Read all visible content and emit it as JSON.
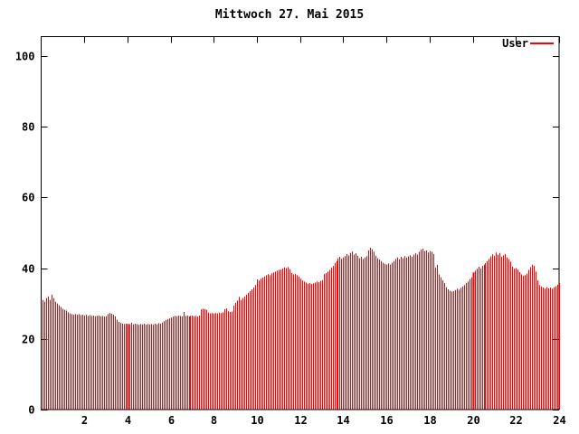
{
  "title": "Mittwoch 27. Mai 2015",
  "legend": {
    "label": "User",
    "color": "#ff0000"
  },
  "colors": {
    "bar": "#ff0000",
    "axis": "#000000",
    "background": "#ffffff",
    "text": "#000000"
  },
  "chart_data": {
    "type": "bar",
    "title": "Mittwoch 27. Mai 2015",
    "xlabel": "",
    "ylabel": "",
    "x_unit": "hour-of-day",
    "sample_interval_minutes": 5,
    "xlim": [
      0,
      24
    ],
    "ylim": [
      0,
      105.5
    ],
    "x_ticks": [
      2,
      4,
      6,
      8,
      10,
      12,
      14,
      16,
      18,
      20,
      22,
      24
    ],
    "y_ticks": [
      0,
      20,
      40,
      60,
      80,
      100
    ],
    "grid": false,
    "legend_position": "top-right-inside",
    "emphasized_sample_indices": [
      47,
      239
    ],
    "series": [
      {
        "name": "User",
        "color": "#ff0000",
        "values": [
          31.0,
          30.5,
          31.5,
          32.0,
          31.0,
          32.5,
          31.5,
          30.5,
          30.0,
          29.5,
          29.0,
          28.5,
          28.2,
          28.0,
          27.5,
          27.2,
          27.0,
          26.8,
          27.0,
          26.8,
          27.0,
          26.7,
          26.8,
          26.6,
          26.8,
          26.5,
          26.7,
          26.5,
          26.6,
          26.4,
          26.5,
          26.6,
          26.4,
          26.5,
          26.3,
          26.4,
          27.0,
          27.3,
          27.1,
          26.8,
          26.4,
          25.4,
          24.8,
          24.5,
          24.3,
          24.2,
          24.3,
          24.2,
          24.2,
          24.6,
          24.1,
          24.3,
          24.2,
          24.0,
          24.2,
          24.1,
          24.3,
          24.0,
          24.2,
          24.1,
          24.2,
          24.0,
          24.3,
          24.1,
          24.4,
          24.3,
          24.6,
          25.0,
          25.3,
          25.6,
          25.8,
          26.0,
          26.3,
          26.5,
          26.4,
          26.6,
          26.5,
          26.3,
          27.6,
          26.5,
          26.6,
          26.4,
          26.5,
          26.6,
          26.4,
          26.5,
          26.3,
          26.6,
          28.3,
          28.5,
          28.4,
          28.2,
          27.4,
          27.2,
          27.3,
          27.2,
          27.3,
          27.2,
          27.4,
          27.3,
          27.5,
          28.4,
          28.6,
          27.8,
          27.6,
          27.7,
          29.4,
          30.2,
          30.8,
          31.9,
          31.0,
          31.5,
          32.0,
          32.5,
          33.0,
          33.5,
          34.0,
          34.5,
          35.2,
          36.8,
          36.5,
          37.0,
          37.3,
          37.6,
          38.0,
          38.3,
          38.0,
          38.5,
          38.8,
          39.0,
          39.3,
          39.5,
          39.6,
          39.9,
          40.2,
          40.0,
          40.3,
          39.7,
          38.6,
          38.2,
          38.4,
          38.0,
          37.6,
          37.0,
          36.5,
          36.2,
          35.9,
          35.6,
          35.8,
          35.5,
          35.7,
          35.9,
          36.2,
          36.0,
          36.4,
          36.6,
          38.3,
          38.6,
          39.0,
          39.5,
          40.2,
          40.6,
          41.5,
          42.0,
          42.8,
          43.2,
          42.6,
          43.0,
          43.4,
          44.0,
          43.6,
          44.3,
          44.7,
          43.8,
          44.2,
          43.5,
          42.8,
          43.2,
          42.6,
          43.0,
          43.4,
          45.0,
          45.8,
          45.3,
          44.6,
          43.5,
          42.8,
          42.4,
          42.0,
          41.5,
          41.2,
          41.0,
          41.3,
          41.0,
          41.5,
          42.0,
          42.6,
          43.0,
          42.5,
          43.2,
          42.8,
          43.4,
          43.0,
          43.3,
          43.6,
          43.2,
          43.8,
          44.2,
          43.8,
          44.6,
          45.2,
          45.5,
          44.8,
          45.0,
          44.4,
          44.8,
          44.6,
          44.0,
          40.2,
          40.9,
          38.2,
          37.4,
          36.6,
          35.8,
          34.6,
          34.0,
          33.6,
          33.4,
          33.5,
          33.8,
          34.2,
          33.9,
          34.4,
          34.8,
          35.2,
          35.8,
          36.2,
          36.9,
          37.4,
          38.8,
          39.3,
          39.8,
          40.4,
          39.9,
          40.6,
          41.0,
          41.4,
          42.0,
          42.6,
          43.3,
          43.9,
          43.5,
          44.4,
          43.8,
          44.3,
          43.2,
          43.6,
          44.0,
          43.0,
          42.5,
          41.8,
          40.4,
          39.8,
          40.0,
          39.6,
          38.9,
          38.2,
          37.8,
          38.0,
          38.4,
          39.5,
          40.3,
          41.0,
          40.6,
          39.0,
          36.5,
          35.2,
          34.8,
          34.5,
          34.2,
          34.6,
          34.3,
          34.5,
          34.2,
          34.6,
          34.9,
          35.3,
          35.8
        ]
      }
    ]
  }
}
